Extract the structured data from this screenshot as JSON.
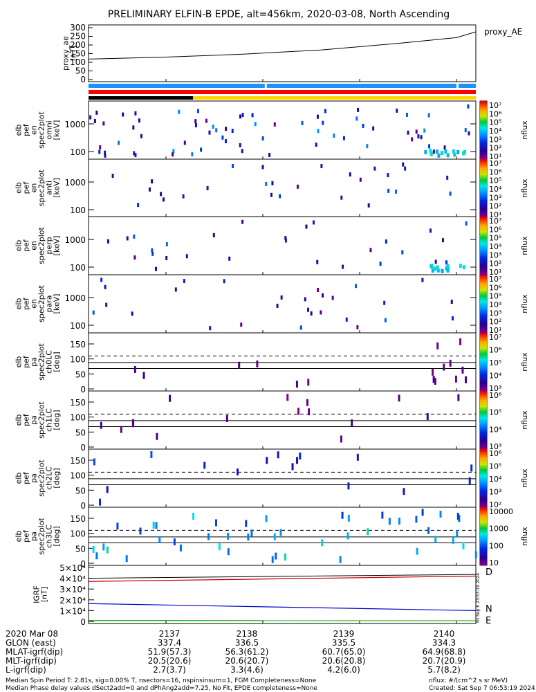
{
  "title": "PRELIMINARY ELFIN-B EPDE, alt=456km, 2020-03-08, North Ascending",
  "panels": {
    "ae": {
      "ylabel": [
        "proxy_ae",
        "[nT]"
      ],
      "yticks": [
        "300",
        "250",
        "200",
        "150",
        "100",
        "50",
        "0"
      ],
      "legend": "proxy_AE"
    },
    "spectra": [
      {
        "ylabel": [
          "elb",
          "pef",
          "en",
          "spec2plot",
          "omni",
          "[keV]"
        ],
        "yticks": [
          "1000",
          "100"
        ]
      },
      {
        "ylabel": [
          "elb",
          "pef",
          "en",
          "spec2plot",
          "anti",
          "[keV]"
        ],
        "yticks": [
          "1000",
          "100"
        ]
      },
      {
        "ylabel": [
          "elb",
          "pef",
          "en",
          "spec2plot",
          "perp",
          "[keV]"
        ],
        "yticks": [
          "1000",
          "100"
        ]
      },
      {
        "ylabel": [
          "elb",
          "pef",
          "en",
          "spec2plot",
          "para",
          "[keV]"
        ],
        "yticks": [
          "1000",
          "100"
        ]
      }
    ],
    "pitch": [
      {
        "ylabel": [
          "elb",
          "pef",
          "pa",
          "spec2plot",
          "ch0LC",
          "[deg]"
        ],
        "yticks": [
          "150",
          "100",
          "50",
          "0"
        ]
      },
      {
        "ylabel": [
          "elb",
          "pef",
          "pa",
          "spec2plot",
          "ch1LC",
          "[deg]"
        ],
        "yticks": [
          "150",
          "100",
          "50",
          "0"
        ]
      },
      {
        "ylabel": [
          "elb",
          "pef",
          "pa",
          "spec2plot",
          "ch2LC",
          "[deg]"
        ],
        "yticks": [
          "150",
          "100",
          "50",
          "0"
        ]
      },
      {
        "ylabel": [
          "elb",
          "pef",
          "pa",
          "spec2plot",
          "ch3LC",
          "[deg]"
        ],
        "yticks": [
          "150",
          "100",
          "50",
          "0"
        ]
      }
    ],
    "igrf": {
      "ylabel": [
        "IGRF",
        "[nT]"
      ],
      "yticks": [
        "5×10⁴",
        "4×10⁴",
        "3×10⁴",
        "2×10⁴",
        "1×10⁴",
        "0"
      ],
      "legend": [
        "D",
        "N",
        "E"
      ],
      "timestamp": "Fri Sep  6 23:53:19 2024"
    },
    "colorbars": [
      {
        "unit": "nflux",
        "ticks": [
          "10⁷",
          "10⁶",
          "10⁵",
          "10⁴",
          "10³",
          "10²",
          "10¹"
        ]
      },
      {
        "unit": "nflux",
        "ticks": [
          "10⁷",
          "10⁶",
          "10⁵",
          "10⁴",
          "10³",
          "10²",
          "10¹"
        ]
      },
      {
        "unit": "nflux",
        "ticks": [
          "10⁷",
          "10⁶",
          "10⁵",
          "10⁴",
          "10³",
          "10²",
          "10¹"
        ]
      },
      {
        "unit": "nflux",
        "ticks": [
          "10⁷",
          "10⁶",
          "10⁵",
          "10⁴",
          "10³",
          "10²",
          "10¹"
        ]
      },
      {
        "unit": "nflux",
        "ticks": [
          "10⁷",
          "10⁶",
          "10⁵",
          "10⁴",
          "10³"
        ]
      },
      {
        "unit": "nflux",
        "ticks": [
          "10⁶",
          "10⁵",
          "10⁴",
          "10³"
        ]
      },
      {
        "unit": "nflux",
        "ticks": [
          "10⁶",
          "10⁵",
          "10⁴",
          "10³",
          "10²"
        ]
      },
      {
        "unit": "nflux",
        "ticks": [
          "10000",
          "1000",
          "100",
          "10"
        ]
      }
    ]
  },
  "axis_table": {
    "rows": [
      {
        "label": "2020 Mar 08",
        "values": [
          "2137",
          "2138",
          "2139",
          "2140"
        ]
      },
      {
        "label": "GLON (east)",
        "values": [
          "337.4",
          "336.5",
          "335.5",
          "334.3"
        ]
      },
      {
        "label": "MLAT-igrf(dip)",
        "values": [
          "51.9(57.3)",
          "56.3(61.2)",
          "60.7(65.0)",
          "64.9(68.8)"
        ]
      },
      {
        "label": "MLT-igrf(dip)",
        "values": [
          "20.5(20.6)",
          "20.6(20.7)",
          "20.6(20.8)",
          "20.7(20.9)"
        ]
      },
      {
        "label": "L-igrf(dip)",
        "values": [
          "2.7(3.7)",
          "3.3(4.6)",
          "4.2(6.0)",
          "5.7(8.2)"
        ]
      }
    ]
  },
  "footer": {
    "left1": "Median Spin Period T: 2.81s, sig=0.00% T, nsectors=16, nspinsinsum=1, FGM Completeness=None",
    "left2": "Median Phase delay values dSect2add=0 and dPhAng2add=7.25, No Fit, EPDE completeness=None",
    "right1": "nflux: #/(cm^2 s sr MeV)",
    "right2": "Created: Sat Sep  7 06:53:19 2024"
  },
  "chart_data": {
    "type": "heatmap",
    "x_ticks": [
      "2137",
      "2138",
      "2139",
      "2140"
    ],
    "proxy_ae": {
      "x": [
        0,
        0.2,
        0.4,
        0.6,
        0.8,
        0.95,
        1.0
      ],
      "y": [
        120,
        132,
        150,
        175,
        215,
        250,
        285
      ],
      "ylim": [
        0,
        310
      ]
    },
    "igrf": {
      "ylim": [
        0,
        50000
      ],
      "series": [
        {
          "name": "D",
          "color": "#cc0000",
          "y_start": 37000,
          "y_end": 42000
        },
        {
          "name": "N",
          "color": "#0000cc",
          "y_start": 16500,
          "y_end": 10000
        },
        {
          "name": "E",
          "color": "#00aa00",
          "y_start": 800,
          "y_end": 700
        }
      ]
    },
    "status_bars": [
      {
        "color": "#1e90ff",
        "gaps": [
          0.455,
          0.95
        ]
      },
      {
        "color": "#ff0000",
        "gaps": []
      },
      {
        "segments": [
          [
            0,
            0.27,
            "#000000"
          ],
          [
            0.27,
            1.0,
            "#ffd700"
          ]
        ]
      }
    ]
  }
}
